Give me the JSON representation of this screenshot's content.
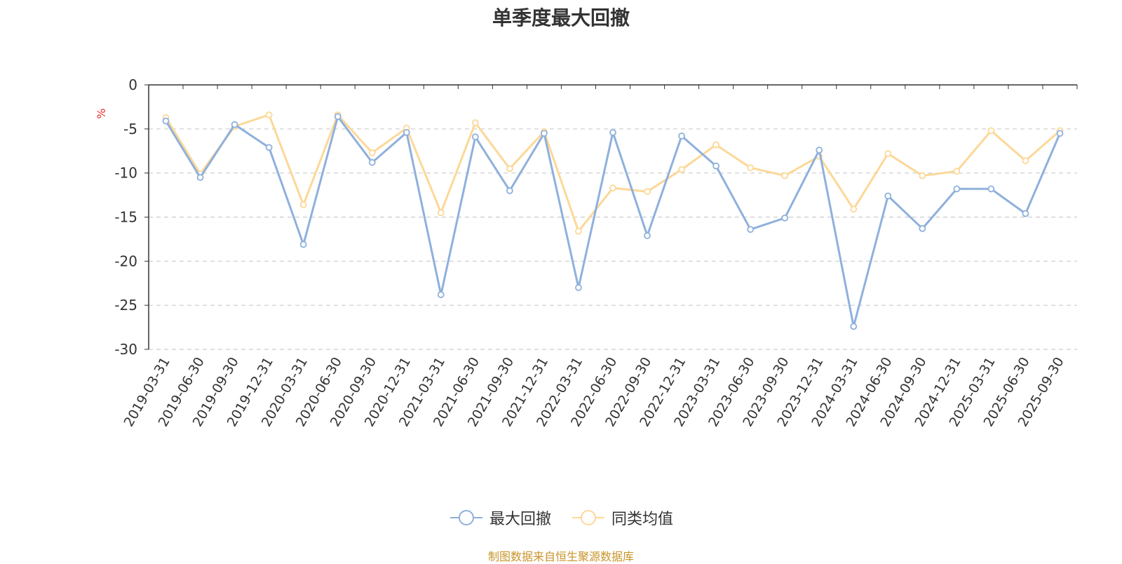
{
  "chart_data": {
    "type": "line",
    "title": "单季度最大回撤",
    "ylabel": "%",
    "xlabel": "",
    "ylim": [
      -30,
      0
    ],
    "yticks": [
      0,
      -5,
      -10,
      -15,
      -20,
      -25,
      -30
    ],
    "grid": "horizontal dashed",
    "legend_position": "bottom-center",
    "categories": [
      "2019-03-31",
      "2019-06-30",
      "2019-09-30",
      "2019-12-31",
      "2020-03-31",
      "2020-06-30",
      "2020-09-30",
      "2020-12-31",
      "2021-03-31",
      "2021-06-30",
      "2021-09-30",
      "2021-12-31",
      "2022-03-31",
      "2022-06-30",
      "2022-09-30",
      "2022-12-31",
      "2023-03-31",
      "2023-06-30",
      "2023-09-30",
      "2023-12-31",
      "2024-03-31",
      "2024-06-30",
      "2024-09-30",
      "2024-12-31",
      "2025-03-31",
      "2025-06-30",
      "2025-09-30"
    ],
    "series": [
      {
        "name": "最大回撤",
        "color": "#8fb0dc",
        "values": [
          -4.1,
          -10.5,
          -4.5,
          -7.1,
          -18.1,
          -3.6,
          -8.8,
          -5.4,
          -23.8,
          -5.9,
          -12.0,
          -5.5,
          -23.0,
          -5.4,
          -17.1,
          -5.8,
          -9.2,
          -16.4,
          -15.1,
          -7.4,
          -27.4,
          -12.6,
          -16.3,
          -11.8,
          -11.8,
          -14.6,
          -5.5
        ]
      },
      {
        "name": "同类均值",
        "color": "#fcd898",
        "values": [
          -3.7,
          -10.1,
          -4.7,
          -3.4,
          -13.6,
          -3.4,
          -7.7,
          -4.9,
          -14.5,
          -4.3,
          -9.5,
          -5.3,
          -16.6,
          -11.7,
          -12.1,
          -9.6,
          -6.8,
          -9.4,
          -10.3,
          -8.1,
          -14.1,
          -7.8,
          -10.3,
          -9.8,
          -5.2,
          -8.6,
          -5.2
        ]
      }
    ]
  },
  "source_note": "制图数据来自恒生聚源数据库"
}
